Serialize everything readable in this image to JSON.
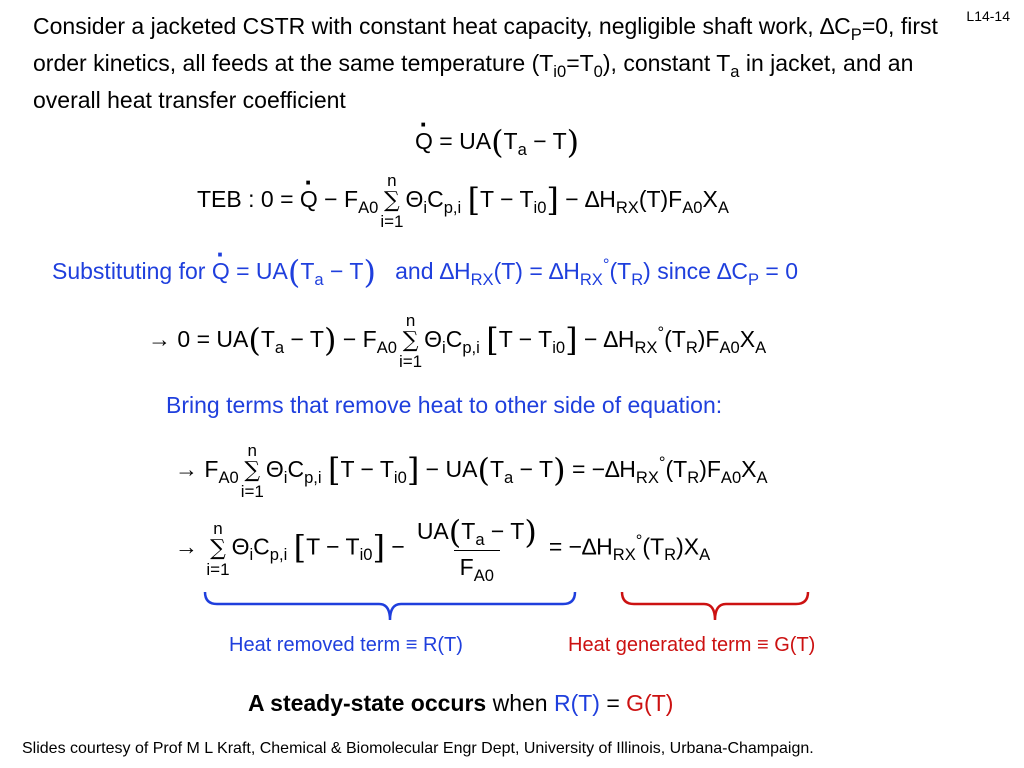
{
  "slide_id": "L14-14",
  "intro": {
    "p1": "Consider a jacketed CSTR with constant heat capacity, negligible shaft work, ",
    "dcp": "∆C",
    "dcp_sub": "P",
    "p2": "=0, first order kinetics, all feeds at the same temperature (T",
    "ti0_sub": "i0",
    "p3": "=T",
    "t0_sub": "0",
    "p4": "), constant T",
    "ta_sub": "a",
    "p5": " in jacket, and an overall heat transfer coefficient"
  },
  "eq_q": {
    "q": "Q",
    "rest": " = UA",
    "ta": "T",
    "ta_sub": "a",
    "minus_t": " − T"
  },
  "eq_teb": {
    "prefix": "TEB : 0 = ",
    "q": "Q",
    "minus_f": " − F",
    "f_sub": "A0",
    "sum_top": "n",
    "sum_bot": "i=1",
    "theta": "Θ",
    "theta_sub": "i",
    "cp": "C",
    "cp_sub": "p,i",
    "bracket": "T − T",
    "bracket_sub": "i0",
    "dh": " − ∆H",
    "dh_sub": "RX",
    "tail": "(T)F",
    "tail_sub": "A0",
    "x": "X",
    "x_sub": "A"
  },
  "substitute": {
    "lead": "Substituting for ",
    "q": "Q",
    "eq_ua": " = UA",
    "ta": "T",
    "ta_sub": "a",
    "minus_t": " − T",
    "and": "and ∆H",
    "and_sub": "RX",
    "eq": "(T) = ∆H",
    "eq_sub": "RX",
    "deg": "°",
    "tr": "(T",
    "tr_sub": "R",
    "since": ") since ∆C",
    "since_sub": "P",
    "end": " = 0"
  },
  "eq3": {
    "lead": "→ 0 = UA",
    "ta": "T",
    "ta_sub": "a",
    "minus_t": " − T",
    "minus_f": " − F",
    "f_sub": "A0",
    "sum_top": "n",
    "sum_bot": "i=1",
    "theta": "Θ",
    "theta_sub": "i",
    "cp": "C",
    "cp_sub": "p,i",
    "bracket": "T − T",
    "bracket_sub": "i0",
    "dh": " − ∆H",
    "dh_sub": "RX",
    "deg": "°",
    "tr": "(T",
    "tr_sub": "R",
    "tail": ")F",
    "tail_sub": "A0",
    "x": "X",
    "x_sub": "A"
  },
  "bring_terms": "Bring terms that remove heat to other side of equation:",
  "eq4": {
    "lead": "→ F",
    "f_sub": "A0",
    "sum_top": "n",
    "sum_bot": "i=1",
    "theta": "Θ",
    "theta_sub": "i",
    "cp": "C",
    "cp_sub": "p,i",
    "bracket": "T − T",
    "bracket_sub": "i0",
    "minus_ua": " − UA",
    "ta": "T",
    "ta_sub": "a",
    "minus_t": " − T",
    "eq": " = −∆H",
    "eq_sub": "RX",
    "deg": "°",
    "tr": "(T",
    "tr_sub": "R",
    "tail": ")F",
    "tail_sub": "A0",
    "x": "X",
    "x_sub": "A"
  },
  "eq5": {
    "lead": "→",
    "sum_top": "n",
    "sum_bot": "i=1",
    "theta": "Θ",
    "theta_sub": "i",
    "cp": "C",
    "cp_sub": "p,i",
    "bracket": "T − T",
    "bracket_sub": "i0",
    "minus": " −",
    "num_ua": "UA",
    "num_ta": "T",
    "num_ta_sub": "a",
    "num_minus_t": " − T",
    "den_f": "F",
    "den_sub": "A0",
    "eq": "= −∆H",
    "eq_sub": "RX",
    "deg": "°",
    "tr": "(T",
    "tr_sub": "R",
    "tail": ")X",
    "tail_sub": "A"
  },
  "labels": {
    "removed": "Heat removed term ≡ R(T)",
    "generated": "Heat generated term ≡ G(T)"
  },
  "steady": {
    "bold": "A steady-state occurs",
    "when": " when ",
    "rt": "R(T)",
    "eq": " = ",
    "gt": "G(T)"
  },
  "footer": "Slides courtesy of Prof M L Kraft, Chemical & Biomolecular Engr Dept, University of Illinois, Urbana-Champaign.",
  "colors": {
    "blue": "#1f3fdd",
    "red": "#cc1111",
    "text": "#000000"
  }
}
